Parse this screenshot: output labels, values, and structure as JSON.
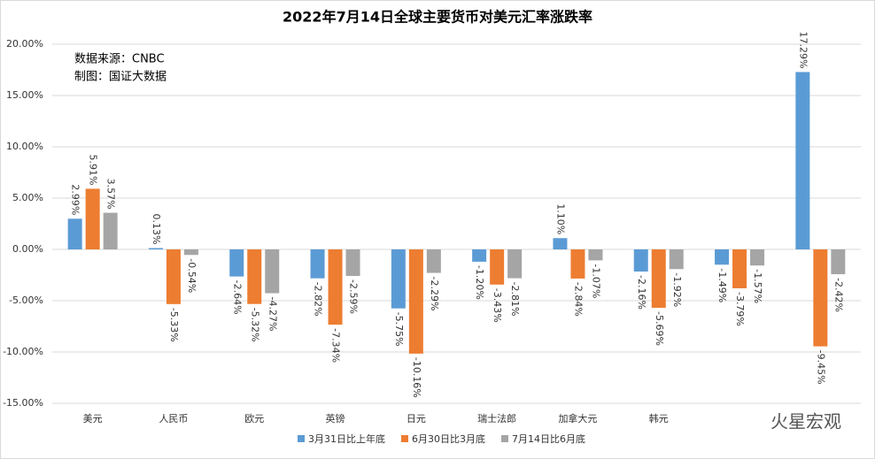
{
  "chart_data": {
    "type": "bar",
    "title": "2022年7月14日全球主要货币对美元汇率涨跌率",
    "annotations": [
      "数据来源：CNBC",
      "制图：国证大数据"
    ],
    "watermark": "火星宏观",
    "categories": [
      "美元",
      "人民币",
      "欧元",
      "英镑",
      "日元",
      "瑞士法郎",
      "加拿大元",
      "韩元",
      null,
      null
    ],
    "series": [
      {
        "name": "3月31日比上年底",
        "color": "#5b9bd5",
        "values": [
          2.99,
          0.13,
          -2.64,
          -2.82,
          -5.75,
          -1.2,
          1.1,
          -2.16,
          -1.49,
          17.29
        ],
        "value_labels": [
          "2.99%",
          "0.13%",
          "-2.64%",
          "-2.82%",
          "-5.75%",
          "-1.20%",
          "1.10%",
          "-2.16%",
          "-1.49%",
          "17.29%"
        ]
      },
      {
        "name": "6月30日比3月底",
        "color": "#ed7d31",
        "values": [
          5.91,
          -5.33,
          -5.32,
          -7.34,
          -10.16,
          -3.43,
          -2.84,
          -5.69,
          -3.79,
          -9.45
        ],
        "value_labels": [
          "5.91%",
          "-5.33%",
          "-5.32%",
          "-7.34%",
          "-10.16%",
          "-3.43%",
          "-2.84%",
          "-5.69%",
          "-3.79%",
          "-9.45%"
        ]
      },
      {
        "name": "7月14日比6月底",
        "color": "#a5a5a5",
        "values": [
          3.57,
          -0.54,
          -4.27,
          -2.59,
          -2.29,
          -2.81,
          -1.07,
          -1.92,
          -1.57,
          -2.42
        ],
        "value_labels": [
          "3.57%",
          "-0.54%",
          "-4.27%",
          "-2.59%",
          "-2.29%",
          "-2.81%",
          "-1.07%",
          "-1.92%",
          "-1.57%",
          "-2.42%"
        ]
      }
    ],
    "ylim": [
      -15,
      20
    ],
    "yticks": [
      {
        "value": -15,
        "label": "-15.00%"
      },
      {
        "value": -10,
        "label": "-10.00%"
      },
      {
        "value": -5,
        "label": "-5.00%"
      },
      {
        "value": 0,
        "label": "0.00%"
      },
      {
        "value": 5,
        "label": "5.00%"
      },
      {
        "value": 10,
        "label": "10.00%"
      },
      {
        "value": 15,
        "label": "15.00%"
      },
      {
        "value": 20,
        "label": "20.00%"
      }
    ],
    "grid": true,
    "legend": "bottom"
  }
}
